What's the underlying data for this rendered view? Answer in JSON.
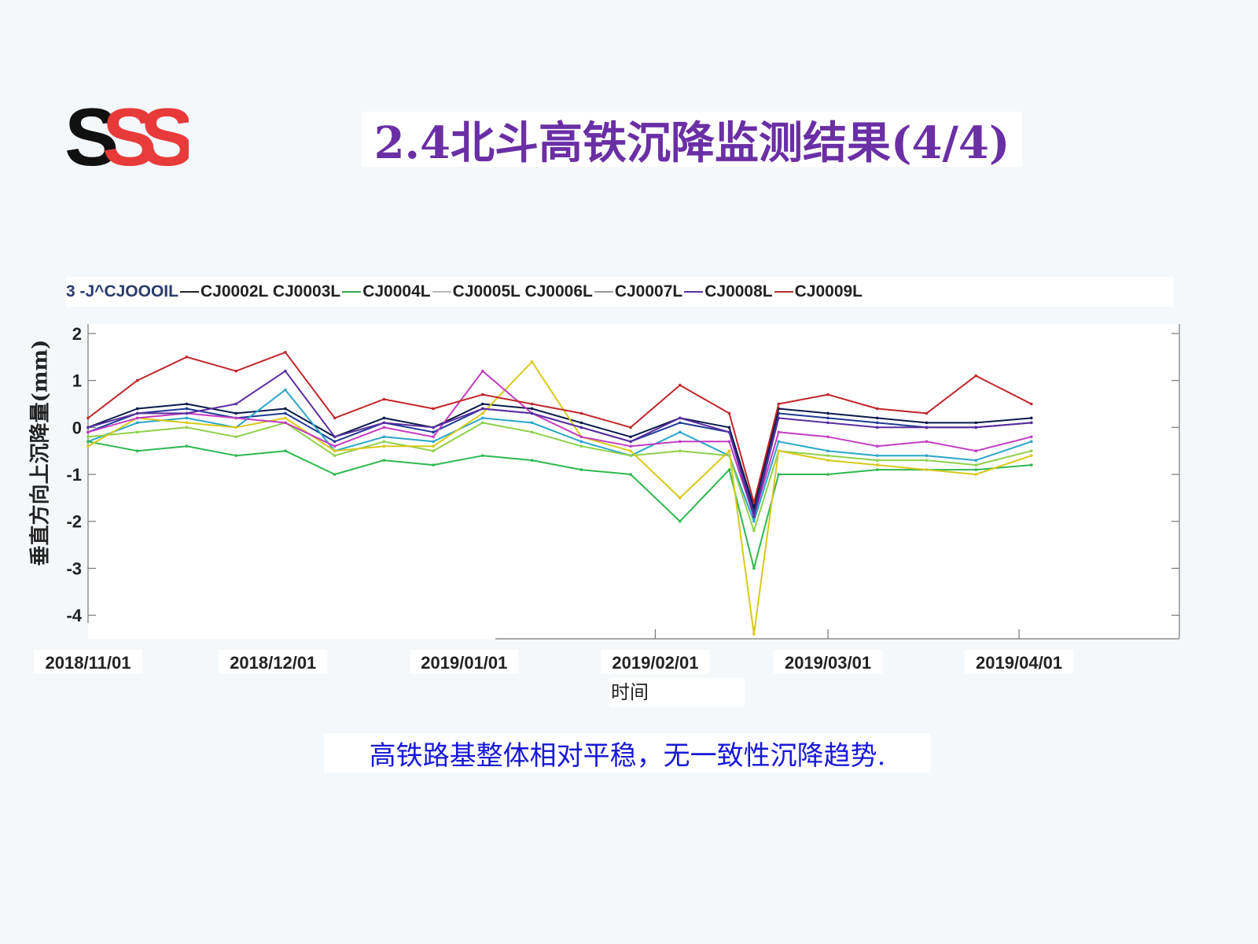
{
  "title": "2.4北斗高铁沉降监测结果(4/4)",
  "logo": {
    "text": "SSS",
    "colors": [
      "#111111",
      "#e83a3a"
    ]
  },
  "legend_text": "3 -J^CJOOOIL—CJ0002L CJ0003L—CJ0004L — CJ0005L CJ0006L一CJ0007L—CJ0008L—CJ0009L",
  "legend": [
    {
      "text": "3 -J^CJOOOIL",
      "color": "#2a3b6b",
      "line": "#222222"
    },
    {
      "text": "CJ0002L CJ0003L",
      "color": "#222222",
      "line": "#2fa84f"
    },
    {
      "text": "CJ0004L",
      "color": "#222222",
      "line": "#bbbbbb"
    },
    {
      "text": "CJ0005L CJ0006L",
      "color": "#222222",
      "line": "#999999"
    },
    {
      "text": "CJ0007L",
      "color": "#222222",
      "line": "#5a2ea0"
    },
    {
      "text": "CJ0008L",
      "color": "#222222",
      "line": "#b03030"
    },
    {
      "text": "CJ0009L",
      "color": "#222222",
      "line": ""
    }
  ],
  "caption": "高铁路基整体相对平稳，无一致性沉降趋势.",
  "chart_data": {
    "type": "line",
    "title": "",
    "xlabel": "时间",
    "ylabel": "垂直方向上沉降量(mm)",
    "ylim": [
      -4.5,
      2.2
    ],
    "yticks": [
      2,
      1,
      0,
      -1,
      -2,
      -3,
      -4
    ],
    "ytick_labels": [
      "2",
      "1",
      "0",
      "-1",
      "-2",
      "-3",
      "-4"
    ],
    "xlim": [
      "2018-11-01",
      "2019-04-27"
    ],
    "xticks": [
      "2018-11-01",
      "2018-12-01",
      "2019-01-01",
      "2019-02-01",
      "2019-03-01",
      "2019-04-01"
    ],
    "xtick_labels": [
      "2018/11/01",
      "2018/12/01",
      "2019/01/01",
      "2019/02/01",
      "2019/03/01",
      "2019/04/01"
    ],
    "grid": false,
    "x": [
      "2018-11-01",
      "2018-11-09",
      "2018-11-17",
      "2018-11-25",
      "2018-12-03",
      "2018-12-11",
      "2018-12-19",
      "2018-12-27",
      "2019-01-04",
      "2019-01-12",
      "2019-01-20",
      "2019-01-28",
      "2019-02-05",
      "2019-02-13",
      "2019-02-17",
      "2019-02-21",
      "2019-03-01",
      "2019-03-09",
      "2019-03-17",
      "2019-03-25",
      "2019-04-03"
    ],
    "series": [
      {
        "name": "CJ0001L",
        "color": "#1f3a93",
        "values": [
          -0.1,
          0.3,
          0.4,
          0.2,
          0.3,
          -0.3,
          0.1,
          -0.1,
          0.4,
          0.3,
          0.0,
          -0.3,
          0.1,
          -0.1,
          -1.8,
          0.3,
          0.2,
          0.1,
          0.0,
          0.0,
          0.1
        ]
      },
      {
        "name": "CJ0002L",
        "color": "#0b1a4a",
        "values": [
          0.0,
          0.4,
          0.5,
          0.3,
          0.4,
          -0.2,
          0.2,
          0.0,
          0.5,
          0.4,
          0.1,
          -0.2,
          0.2,
          0.0,
          -1.7,
          0.4,
          0.3,
          0.2,
          0.1,
          0.1,
          0.2
        ]
      },
      {
        "name": "CJ0003L",
        "color": "#2aa6c8",
        "values": [
          -0.3,
          0.1,
          0.2,
          0.0,
          0.8,
          -0.5,
          -0.2,
          -0.3,
          0.2,
          0.1,
          -0.3,
          -0.6,
          -0.1,
          -0.6,
          -2.0,
          -0.3,
          -0.5,
          -0.6,
          -0.6,
          -0.7,
          -0.3
        ]
      },
      {
        "name": "CJ0004L",
        "color": "#2fb84f",
        "values": [
          -0.3,
          -0.5,
          -0.4,
          -0.6,
          -0.5,
          -1.0,
          -0.7,
          -0.8,
          -0.6,
          -0.7,
          -0.9,
          -1.0,
          -2.0,
          -0.9,
          -3.0,
          -1.0,
          -1.0,
          -0.9,
          -0.9,
          -0.9,
          -0.8
        ]
      },
      {
        "name": "CJ0005L",
        "color": "#8fd04a",
        "values": [
          -0.2,
          -0.1,
          0.0,
          -0.2,
          0.1,
          -0.6,
          -0.3,
          -0.5,
          0.1,
          -0.1,
          -0.4,
          -0.6,
          -0.5,
          -0.6,
          -2.2,
          -0.5,
          -0.6,
          -0.7,
          -0.7,
          -0.8,
          -0.5
        ]
      },
      {
        "name": "CJ0006L",
        "color": "#d8c81a",
        "values": [
          -0.4,
          0.2,
          0.1,
          0.0,
          0.2,
          -0.5,
          -0.4,
          -0.4,
          0.3,
          1.4,
          -0.2,
          -0.5,
          -1.5,
          -0.5,
          -4.4,
          -0.5,
          -0.7,
          -0.8,
          -0.9,
          -1.0,
          -0.6
        ]
      },
      {
        "name": "CJ0007L",
        "color": "#c23cc2",
        "values": [
          -0.1,
          0.2,
          0.3,
          0.2,
          0.1,
          -0.4,
          0.0,
          -0.2,
          1.2,
          0.3,
          -0.2,
          -0.4,
          -0.3,
          -0.3,
          -1.9,
          -0.1,
          -0.2,
          -0.4,
          -0.3,
          -0.5,
          -0.2
        ]
      },
      {
        "name": "CJ0008L",
        "color": "#5a2ea0",
        "values": [
          0.0,
          0.3,
          0.3,
          0.5,
          1.2,
          -0.2,
          0.1,
          0.0,
          0.4,
          0.3,
          0.0,
          -0.3,
          0.2,
          -0.1,
          -1.9,
          0.2,
          0.1,
          0.0,
          0.0,
          0.0,
          0.1
        ]
      },
      {
        "name": "CJ0009L",
        "color": "#c0262a",
        "values": [
          0.2,
          1.0,
          1.5,
          1.2,
          1.6,
          0.2,
          0.6,
          0.4,
          0.7,
          0.5,
          0.3,
          0.0,
          0.9,
          0.3,
          -1.6,
          0.5,
          0.7,
          0.4,
          0.3,
          1.1,
          0.5
        ]
      }
    ]
  }
}
